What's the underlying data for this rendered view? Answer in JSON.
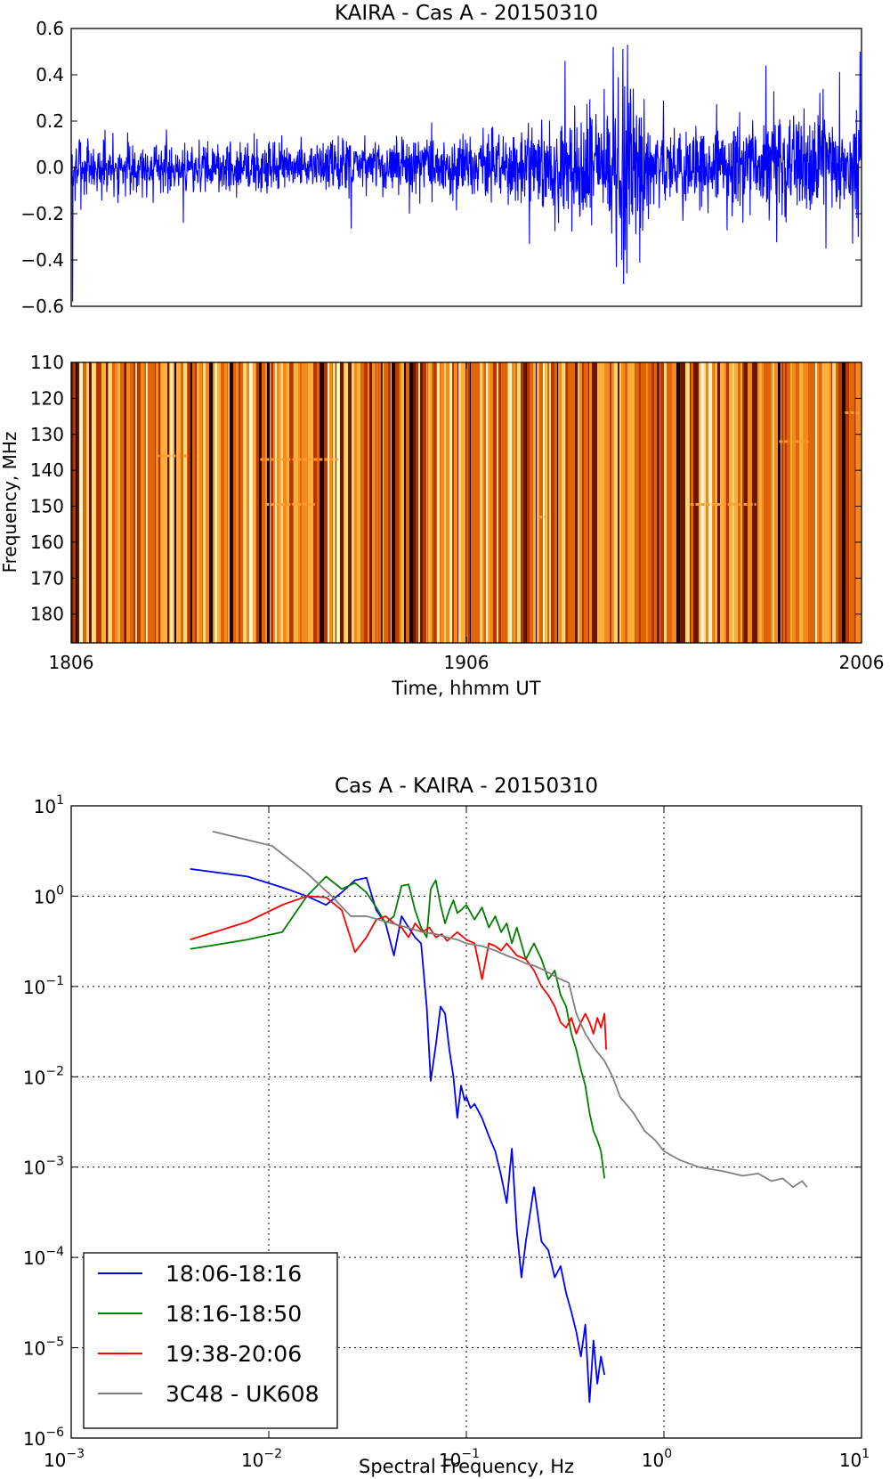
{
  "chart_data": [
    {
      "type": "line",
      "title": "KAIRA - Cas A - 20150310",
      "xlabel": "",
      "ylabel": "",
      "xlim": [
        0,
        120
      ],
      "ylim": [
        -0.6,
        0.6
      ],
      "y_ticks": [
        -0.6,
        -0.4,
        -0.2,
        0.0,
        0.2,
        0.4,
        0.6
      ],
      "y_tick_labels": [
        "−0.6",
        "−0.4",
        "−0.2",
        "0.0",
        "0.2",
        "0.4",
        "0.6"
      ],
      "grid": false,
      "series": [
        {
          "color": "#0000ff",
          "amplitude_envelope": [
            {
              "time_min": 0,
              "amp": 0.1
            },
            {
              "time_min": 30,
              "amp": 0.08
            },
            {
              "time_min": 50,
              "amp": 0.09
            },
            {
              "time_min": 62,
              "amp": 0.1
            },
            {
              "time_min": 70,
              "amp": 0.13
            },
            {
              "time_min": 75,
              "amp": 0.15
            },
            {
              "time_min": 80,
              "amp": 0.2
            },
            {
              "time_min": 84,
              "amp": 0.35
            },
            {
              "time_min": 88,
              "amp": 0.15
            },
            {
              "time_min": 95,
              "amp": 0.14
            },
            {
              "time_min": 100,
              "amp": 0.18
            },
            {
              "time_min": 110,
              "amp": 0.16
            },
            {
              "time_min": 120,
              "amp": 0.18
            }
          ],
          "peaks": [
            {
              "time_min": 82.3,
              "value": 0.52
            },
            {
              "time_min": 82.8,
              "value": -0.43
            },
            {
              "time_min": 83.6,
              "value": -0.4
            },
            {
              "time_min": 84.5,
              "value": 0.53
            },
            {
              "time_min": 0.2,
              "value": -0.58
            },
            {
              "time_min": 119.8,
              "value": 0.5
            },
            {
              "time_min": 119.5,
              "value": -0.3
            },
            {
              "time_min": 69.6,
              "value": -0.33
            },
            {
              "time_min": 75.0,
              "value": 0.46
            },
            {
              "time_min": 105.5,
              "value": 0.44
            },
            {
              "time_min": 114.6,
              "value": -0.35
            }
          ]
        }
      ]
    },
    {
      "type": "heatmap",
      "xlabel": "Time, hhmm UT",
      "ylabel": "Frequency, MHz",
      "xlim": [
        0,
        120
      ],
      "ylim": [
        110,
        188
      ],
      "x_tick_labels": [
        "1806",
        "1906",
        "2006"
      ],
      "y_ticks": [
        110,
        120,
        130,
        140,
        150,
        160,
        170,
        180
      ],
      "y_tick_labels": [
        "110",
        "120",
        "130",
        "140",
        "150",
        "160",
        "170",
        "180"
      ],
      "colormap": [
        "#1a0500",
        "#6b1800",
        "#b33900",
        "#e0650a",
        "#f48a1c",
        "#fbb03e",
        "#fdd87a",
        "#fff4c8"
      ],
      "rfi_features": [
        {
          "t_start": 12.9,
          "t_end": 17.8,
          "freq_mhz": 136
        },
        {
          "t_start": 28.7,
          "t_end": 40.5,
          "freq_mhz": 137
        },
        {
          "t_start": 29.5,
          "t_end": 37.0,
          "freq_mhz": 149.5
        },
        {
          "t_start": 94.0,
          "t_end": 104.0,
          "freq_mhz": 149.5
        },
        {
          "t_start": 107.5,
          "t_end": 112.0,
          "freq_mhz": 132
        },
        {
          "t_start": 71.0,
          "t_end": 72.0,
          "freq_mhz": 153
        },
        {
          "t_start": 117.5,
          "t_end": 120.0,
          "freq_mhz": 124
        }
      ]
    },
    {
      "type": "line",
      "title": "Cas A - KAIRA - 20150310",
      "xlabel": "Spectral Frequency, Hz",
      "ylabel": "",
      "x_scale": "log",
      "y_scale": "log",
      "xlim": [
        0.001,
        10
      ],
      "ylim": [
        1e-06,
        10
      ],
      "x_tick_labels": [
        {
          "base": "10",
          "exp": "−3"
        },
        {
          "base": "10",
          "exp": "−2"
        },
        {
          "base": "10",
          "exp": "−1"
        },
        {
          "base": "10",
          "exp": "0"
        },
        {
          "base": "10",
          "exp": "1"
        }
      ],
      "y_tick_labels": [
        {
          "base": "10",
          "exp": "1"
        },
        {
          "base": "10",
          "exp": "0"
        },
        {
          "base": "10",
          "exp": "−1"
        },
        {
          "base": "10",
          "exp": "−2"
        },
        {
          "base": "10",
          "exp": "−3"
        },
        {
          "base": "10",
          "exp": "−4"
        },
        {
          "base": "10",
          "exp": "−5"
        },
        {
          "base": "10",
          "exp": "−6"
        }
      ],
      "grid": true,
      "legend_position": "lower-left",
      "series": [
        {
          "name": "18:06-18:16",
          "color": "#0000ff",
          "points": [
            [
              0.004,
              2.0
            ],
            [
              0.0078,
              1.65
            ],
            [
              0.0117,
              1.25
            ],
            [
              0.0156,
              1.0
            ],
            [
              0.0195,
              0.8
            ],
            [
              0.0234,
              1.1
            ],
            [
              0.0273,
              1.5
            ],
            [
              0.0312,
              1.6
            ],
            [
              0.035,
              0.7
            ],
            [
              0.039,
              0.5
            ],
            [
              0.043,
              0.22
            ],
            [
              0.047,
              0.6
            ],
            [
              0.051,
              0.45
            ],
            [
              0.055,
              0.35
            ],
            [
              0.059,
              0.3
            ],
            [
              0.063,
              0.06
            ],
            [
              0.066,
              0.009
            ],
            [
              0.07,
              0.022
            ],
            [
              0.074,
              0.06
            ],
            [
              0.078,
              0.05
            ],
            [
              0.082,
              0.02
            ],
            [
              0.086,
              0.01
            ],
            [
              0.09,
              0.0035
            ],
            [
              0.094,
              0.008
            ],
            [
              0.098,
              0.0055
            ],
            [
              0.1,
              0.006
            ],
            [
              0.105,
              0.0045
            ],
            [
              0.11,
              0.005
            ],
            [
              0.12,
              0.0035
            ],
            [
              0.13,
              0.0022
            ],
            [
              0.14,
              0.0015
            ],
            [
              0.15,
              0.0008
            ],
            [
              0.16,
              0.0004
            ],
            [
              0.17,
              0.0016
            ],
            [
              0.18,
              0.0002
            ],
            [
              0.19,
              6e-05
            ],
            [
              0.2,
              0.00015
            ],
            [
              0.22,
              0.0006
            ],
            [
              0.24,
              0.00015
            ],
            [
              0.26,
              0.00012
            ],
            [
              0.28,
              6e-05
            ],
            [
              0.3,
              8e-05
            ],
            [
              0.32,
              4e-05
            ],
            [
              0.34,
              2.5e-05
            ],
            [
              0.36,
              1.5e-05
            ],
            [
              0.38,
              8e-06
            ],
            [
              0.4,
              1.8e-05
            ],
            [
              0.42,
              2.5e-06
            ],
            [
              0.44,
              1.2e-05
            ],
            [
              0.46,
              4e-06
            ],
            [
              0.48,
              8e-06
            ],
            [
              0.5,
              5e-06
            ]
          ]
        },
        {
          "name": "18:16-18:50",
          "color": "#007f00",
          "points": [
            [
              0.004,
              0.26
            ],
            [
              0.0078,
              0.33
            ],
            [
              0.0117,
              0.4
            ],
            [
              0.0156,
              1.0
            ],
            [
              0.0195,
              1.65
            ],
            [
              0.0234,
              1.2
            ],
            [
              0.0273,
              1.4
            ],
            [
              0.0312,
              1.1
            ],
            [
              0.035,
              0.75
            ],
            [
              0.039,
              0.5
            ],
            [
              0.043,
              0.6
            ],
            [
              0.047,
              1.3
            ],
            [
              0.051,
              1.35
            ],
            [
              0.055,
              0.7
            ],
            [
              0.059,
              0.45
            ],
            [
              0.063,
              0.35
            ],
            [
              0.066,
              1.2
            ],
            [
              0.07,
              1.5
            ],
            [
              0.074,
              0.8
            ],
            [
              0.078,
              0.5
            ],
            [
              0.082,
              0.7
            ],
            [
              0.086,
              0.9
            ],
            [
              0.09,
              0.65
            ],
            [
              0.094,
              0.7
            ],
            [
              0.1,
              0.8
            ],
            [
              0.11,
              0.55
            ],
            [
              0.12,
              0.75
            ],
            [
              0.13,
              0.45
            ],
            [
              0.14,
              0.6
            ],
            [
              0.15,
              0.4
            ],
            [
              0.16,
              0.5
            ],
            [
              0.17,
              0.3
            ],
            [
              0.18,
              0.45
            ],
            [
              0.2,
              0.2
            ],
            [
              0.22,
              0.3
            ],
            [
              0.24,
              0.2
            ],
            [
              0.26,
              0.12
            ],
            [
              0.28,
              0.15
            ],
            [
              0.3,
              0.08
            ],
            [
              0.32,
              0.06
            ],
            [
              0.34,
              0.03
            ],
            [
              0.36,
              0.02
            ],
            [
              0.38,
              0.012
            ],
            [
              0.4,
              0.008
            ],
            [
              0.42,
              0.004
            ],
            [
              0.44,
              0.0025
            ],
            [
              0.46,
              0.002
            ],
            [
              0.48,
              0.0015
            ],
            [
              0.5,
              0.00075
            ]
          ]
        },
        {
          "name": "19:38-20:06",
          "color": "#ff0000",
          "points": [
            [
              0.004,
              0.33
            ],
            [
              0.0078,
              0.52
            ],
            [
              0.0117,
              0.8
            ],
            [
              0.0156,
              1.0
            ],
            [
              0.0195,
              0.97
            ],
            [
              0.0234,
              0.7
            ],
            [
              0.0273,
              0.24
            ],
            [
              0.0312,
              0.35
            ],
            [
              0.035,
              0.55
            ],
            [
              0.039,
              0.6
            ],
            [
              0.043,
              0.5
            ],
            [
              0.047,
              0.45
            ],
            [
              0.051,
              0.35
            ],
            [
              0.055,
              0.5
            ],
            [
              0.06,
              0.4
            ],
            [
              0.065,
              0.45
            ],
            [
              0.07,
              0.35
            ],
            [
              0.075,
              0.38
            ],
            [
              0.08,
              0.32
            ],
            [
              0.09,
              0.4
            ],
            [
              0.1,
              0.33
            ],
            [
              0.11,
              0.3
            ],
            [
              0.12,
              0.12
            ],
            [
              0.13,
              0.3
            ],
            [
              0.14,
              0.28
            ],
            [
              0.15,
              0.25
            ],
            [
              0.16,
              0.3
            ],
            [
              0.18,
              0.22
            ],
            [
              0.2,
              0.2
            ],
            [
              0.22,
              0.15
            ],
            [
              0.24,
              0.1
            ],
            [
              0.26,
              0.08
            ],
            [
              0.28,
              0.06
            ],
            [
              0.3,
              0.04
            ],
            [
              0.32,
              0.035
            ],
            [
              0.34,
              0.045
            ],
            [
              0.36,
              0.03
            ],
            [
              0.38,
              0.04
            ],
            [
              0.4,
              0.05
            ],
            [
              0.42,
              0.04
            ],
            [
              0.44,
              0.03
            ],
            [
              0.46,
              0.045
            ],
            [
              0.48,
              0.035
            ],
            [
              0.5,
              0.05
            ],
            [
              0.51,
              0.02
            ]
          ]
        },
        {
          "name": "3C48 - UK608",
          "color": "#808080",
          "points": [
            [
              0.0052,
              5.2
            ],
            [
              0.0104,
              3.6
            ],
            [
              0.0156,
              1.8
            ],
            [
              0.0208,
              1.0
            ],
            [
              0.026,
              0.6
            ],
            [
              0.0312,
              0.6
            ],
            [
              0.036,
              0.55
            ],
            [
              0.042,
              0.5
            ],
            [
              0.05,
              0.45
            ],
            [
              0.06,
              0.4
            ],
            [
              0.07,
              0.38
            ],
            [
              0.08,
              0.35
            ],
            [
              0.09,
              0.33
            ],
            [
              0.1,
              0.3
            ],
            [
              0.12,
              0.28
            ],
            [
              0.14,
              0.25
            ],
            [
              0.16,
              0.22
            ],
            [
              0.18,
              0.2
            ],
            [
              0.2,
              0.18
            ],
            [
              0.22,
              0.17
            ],
            [
              0.25,
              0.15
            ],
            [
              0.28,
              0.13
            ],
            [
              0.3,
              0.12
            ],
            [
              0.33,
              0.11
            ],
            [
              0.36,
              0.05
            ],
            [
              0.4,
              0.03
            ],
            [
              0.45,
              0.02
            ],
            [
              0.5,
              0.015
            ],
            [
              0.55,
              0.01
            ],
            [
              0.6,
              0.006
            ],
            [
              0.7,
              0.004
            ],
            [
              0.8,
              0.0025
            ],
            [
              0.9,
              0.002
            ],
            [
              1.0,
              0.0015
            ],
            [
              1.2,
              0.0012
            ],
            [
              1.5,
              0.001
            ],
            [
              2.0,
              0.0009
            ],
            [
              2.5,
              0.0008
            ],
            [
              3.0,
              0.00085
            ],
            [
              3.5,
              0.0007
            ],
            [
              4.0,
              0.00075
            ],
            [
              4.5,
              0.0006
            ],
            [
              5.0,
              0.0007
            ],
            [
              5.3,
              0.0006
            ]
          ]
        }
      ]
    }
  ]
}
